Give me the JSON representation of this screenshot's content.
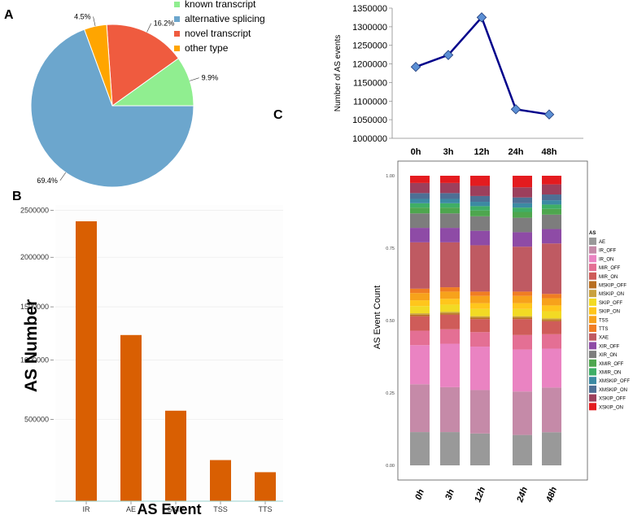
{
  "panel_labels": {
    "a": "A",
    "b": "B",
    "c": "C"
  },
  "chart_data": [
    {
      "type": "pie",
      "panel": "A",
      "slices": [
        {
          "label": "known transcript",
          "value": 9.9,
          "text": "9.9%",
          "color": "#90ee90"
        },
        {
          "label": "novel transcript",
          "value": 16.2,
          "text": "16.2%",
          "color": "#ef5b3f"
        },
        {
          "label": "other type",
          "value": 4.5,
          "text": "4.5%",
          "color": "#ffa500"
        },
        {
          "label": "alternative splicing",
          "value": 69.4,
          "text": "69.4%",
          "color": "#6ca6cd"
        }
      ],
      "legend": [
        "known transcript",
        "alternative splicing",
        "novel transcript",
        "other type"
      ],
      "legend_colors": [
        "#90ee90",
        "#6ca6cd",
        "#ef5b3f",
        "#ffa500"
      ]
    },
    {
      "type": "bar",
      "panel": "B",
      "categories": [
        "IR",
        "AE",
        "SKIP",
        "TSS",
        "TTS"
      ],
      "values": [
        2380000,
        1230000,
        570000,
        210000,
        135000
      ],
      "xlabel": "AS Event",
      "ylabel": "AS Number",
      "ytick_values": [
        500000,
        1000000,
        1500000,
        2000000,
        2500000
      ],
      "ytick_labels": [
        "500000",
        "1000000",
        "1500000",
        "2000000",
        "2500000"
      ],
      "color": "#d95f02"
    },
    {
      "type": "line",
      "panel": "C",
      "x": [
        "0h",
        "3h",
        "12h",
        "24h",
        "48h"
      ],
      "values": [
        1192000,
        1224000,
        1325000,
        1078000,
        1064000
      ],
      "ylabel": "Number of  AS events",
      "ylim": [
        1000000,
        1350000
      ],
      "ytick_values": [
        1000000,
        1050000,
        1100000,
        1150000,
        1200000,
        1250000,
        1300000,
        1350000
      ],
      "ytick_labels": [
        "1000000",
        "1050000",
        "1100000",
        "1150000",
        "1200000",
        "1250000",
        "1300000",
        "1350000"
      ],
      "line_color": "#00008b",
      "marker_color": "#5b8fd4"
    },
    {
      "type": "bar",
      "stacked": true,
      "panel": "C-lower",
      "categories": [
        "0h",
        "3h",
        "12h",
        "24h",
        "48h"
      ],
      "ylabel": "AS Event Count",
      "ylim": [
        0,
        1
      ],
      "ytick_values": [
        0,
        0.25,
        0.5,
        0.75,
        1
      ],
      "ytick_labels": [
        "0.00",
        "0.25",
        "0.50",
        "0.75",
        "1.00"
      ],
      "legend_title": "AS",
      "series": [
        {
          "name": "AE",
          "color": "#999999",
          "values": [
            0.115,
            0.115,
            0.11,
            0.105,
            0.115
          ]
        },
        {
          "name": "IR_OFF",
          "color": "#c58aa8",
          "values": [
            0.165,
            0.155,
            0.15,
            0.15,
            0.155
          ]
        },
        {
          "name": "IR_ON",
          "color": "#ea83c2",
          "values": [
            0.135,
            0.15,
            0.15,
            0.145,
            0.135
          ]
        },
        {
          "name": "MIR_OFF",
          "color": "#e46f94",
          "values": [
            0.05,
            0.05,
            0.05,
            0.05,
            0.05
          ]
        },
        {
          "name": "MIR_ON",
          "color": "#cf5c59",
          "values": [
            0.05,
            0.05,
            0.045,
            0.055,
            0.045
          ]
        },
        {
          "name": "MSKIP_OFF",
          "color": "#b86e20",
          "values": [
            0.005,
            0.005,
            0.005,
            0.005,
            0.005
          ]
        },
        {
          "name": "MSKIP_ON",
          "color": "#c9a13e",
          "values": [
            0.005,
            0.005,
            0.005,
            0.005,
            0.005
          ]
        },
        {
          "name": "SKIP_OFF",
          "color": "#f2da24",
          "values": [
            0.025,
            0.025,
            0.025,
            0.025,
            0.025
          ]
        },
        {
          "name": "SKIP_ON",
          "color": "#ffc61c",
          "values": [
            0.02,
            0.02,
            0.02,
            0.02,
            0.02
          ]
        },
        {
          "name": "TSS",
          "color": "#f7a21b",
          "values": [
            0.025,
            0.025,
            0.025,
            0.025,
            0.025
          ]
        },
        {
          "name": "TTS",
          "color": "#f07d23",
          "values": [
            0.015,
            0.015,
            0.015,
            0.015,
            0.015
          ]
        },
        {
          "name": "XAE",
          "color": "#bf5a62",
          "values": [
            0.16,
            0.155,
            0.16,
            0.155,
            0.175
          ]
        },
        {
          "name": "XIR_OFF",
          "color": "#8e4ba6",
          "values": [
            0.05,
            0.05,
            0.05,
            0.05,
            0.05
          ]
        },
        {
          "name": "XIR_ON",
          "color": "#7d7d7d",
          "values": [
            0.05,
            0.05,
            0.05,
            0.05,
            0.05
          ]
        },
        {
          "name": "XMIR_OFF",
          "color": "#4ea64e",
          "values": [
            0.02,
            0.02,
            0.02,
            0.02,
            0.02
          ]
        },
        {
          "name": "XMIR_ON",
          "color": "#3fae66",
          "values": [
            0.015,
            0.015,
            0.015,
            0.015,
            0.015
          ]
        },
        {
          "name": "XMSKIP_OFF",
          "color": "#3c8aa3",
          "values": [
            0.015,
            0.015,
            0.015,
            0.015,
            0.015
          ]
        },
        {
          "name": "XMSKIP_ON",
          "color": "#4e6f95",
          "values": [
            0.02,
            0.02,
            0.02,
            0.02,
            0.02
          ]
        },
        {
          "name": "XSKIP_OFF",
          "color": "#9c3f5c",
          "values": [
            0.035,
            0.035,
            0.035,
            0.035,
            0.035
          ]
        },
        {
          "name": "XSKIP_ON",
          "color": "#e41b1f",
          "values": [
            0.025,
            0.025,
            0.035,
            0.04,
            0.03
          ]
        }
      ]
    }
  ]
}
